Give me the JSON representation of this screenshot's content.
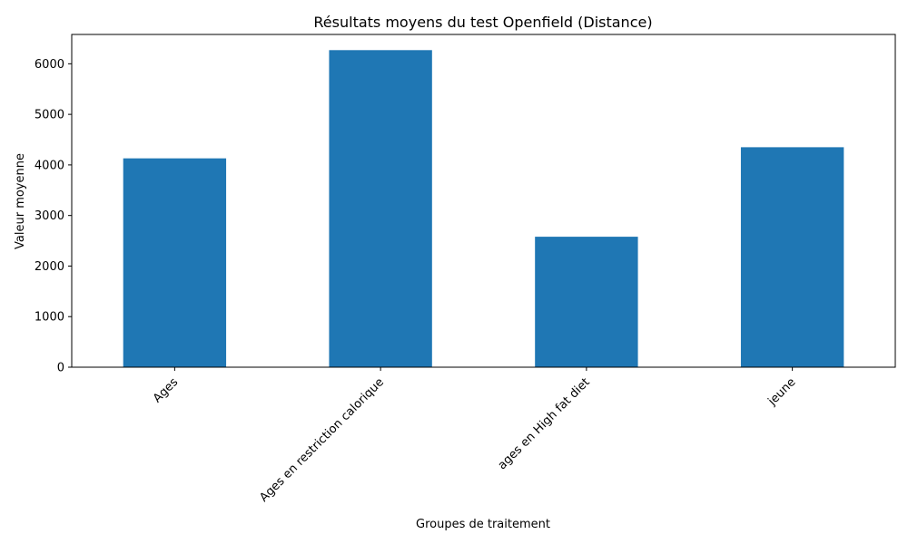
{
  "chart_data": {
    "type": "bar",
    "title": "Résultats moyens du test Openfield (Distance)",
    "xlabel": "Groupes de traitement",
    "ylabel": "Valeur moyenne",
    "categories": [
      "Ages",
      "Ages en restriction calorique",
      "ages en High fat diet",
      "jeune"
    ],
    "values": [
      4130,
      6270,
      2580,
      4350
    ],
    "ylim": [
      0,
      6580
    ],
    "yticks": [
      0,
      1000,
      2000,
      3000,
      4000,
      5000,
      6000
    ],
    "bar_color": "#1f77b4",
    "grid": false,
    "legend": "none"
  }
}
